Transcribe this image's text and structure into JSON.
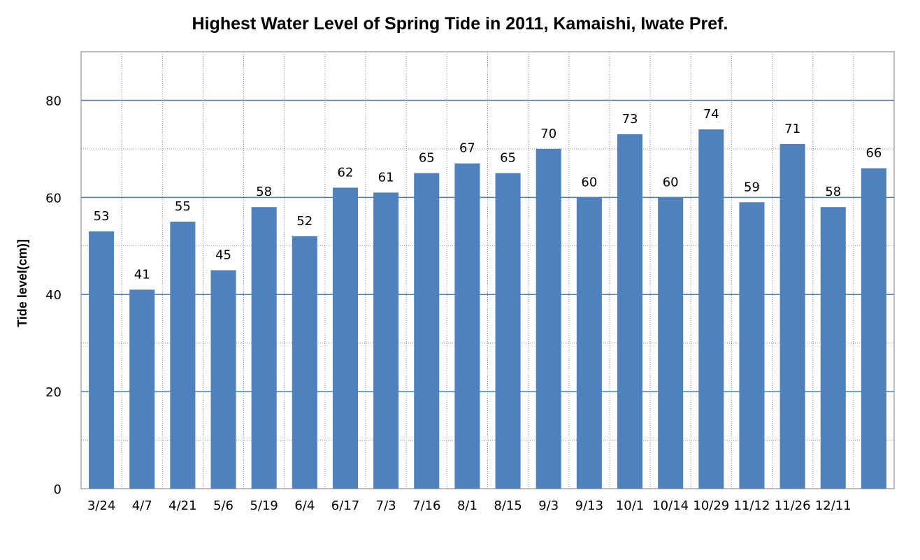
{
  "chart_data": {
    "type": "bar",
    "title": "Highest Water Level of Spring Tide in 2011,  Kamaishi, Iwate Pref.",
    "xlabel": "",
    "ylabel": "Tide level(cm)]",
    "categories": [
      "3/24",
      "4/7",
      "4/21",
      "5/6",
      "5/19",
      "6/4",
      "6/17",
      "7/3",
      "7/16",
      "8/1",
      "8/15",
      "9/3",
      "9/13",
      "10/1",
      "10/14",
      "10/29",
      "11/12",
      "11/26",
      "12/11",
      ""
    ],
    "values": [
      53,
      41,
      55,
      45,
      58,
      52,
      62,
      61,
      65,
      67,
      65,
      70,
      60,
      73,
      60,
      74,
      59,
      71,
      58,
      66
    ],
    "data_labels": [
      "53",
      "41",
      "55",
      "45",
      "58",
      "52",
      "62",
      "61",
      "65",
      "67",
      "65",
      "70",
      "60",
      "73",
      "60",
      "74",
      "59",
      "71",
      "58",
      "66"
    ],
    "ylim": [
      0,
      90
    ],
    "y_ticks": [
      0,
      20,
      40,
      60,
      80
    ],
    "y_tick_labels": [
      "0",
      "20",
      "40",
      "60",
      "80"
    ],
    "grid": true,
    "colors": {
      "bar": "#4f81bd",
      "major_grid": "#4a7ebb",
      "minor_grid": "#8c8c8c",
      "border": "#7f7f7f"
    }
  }
}
